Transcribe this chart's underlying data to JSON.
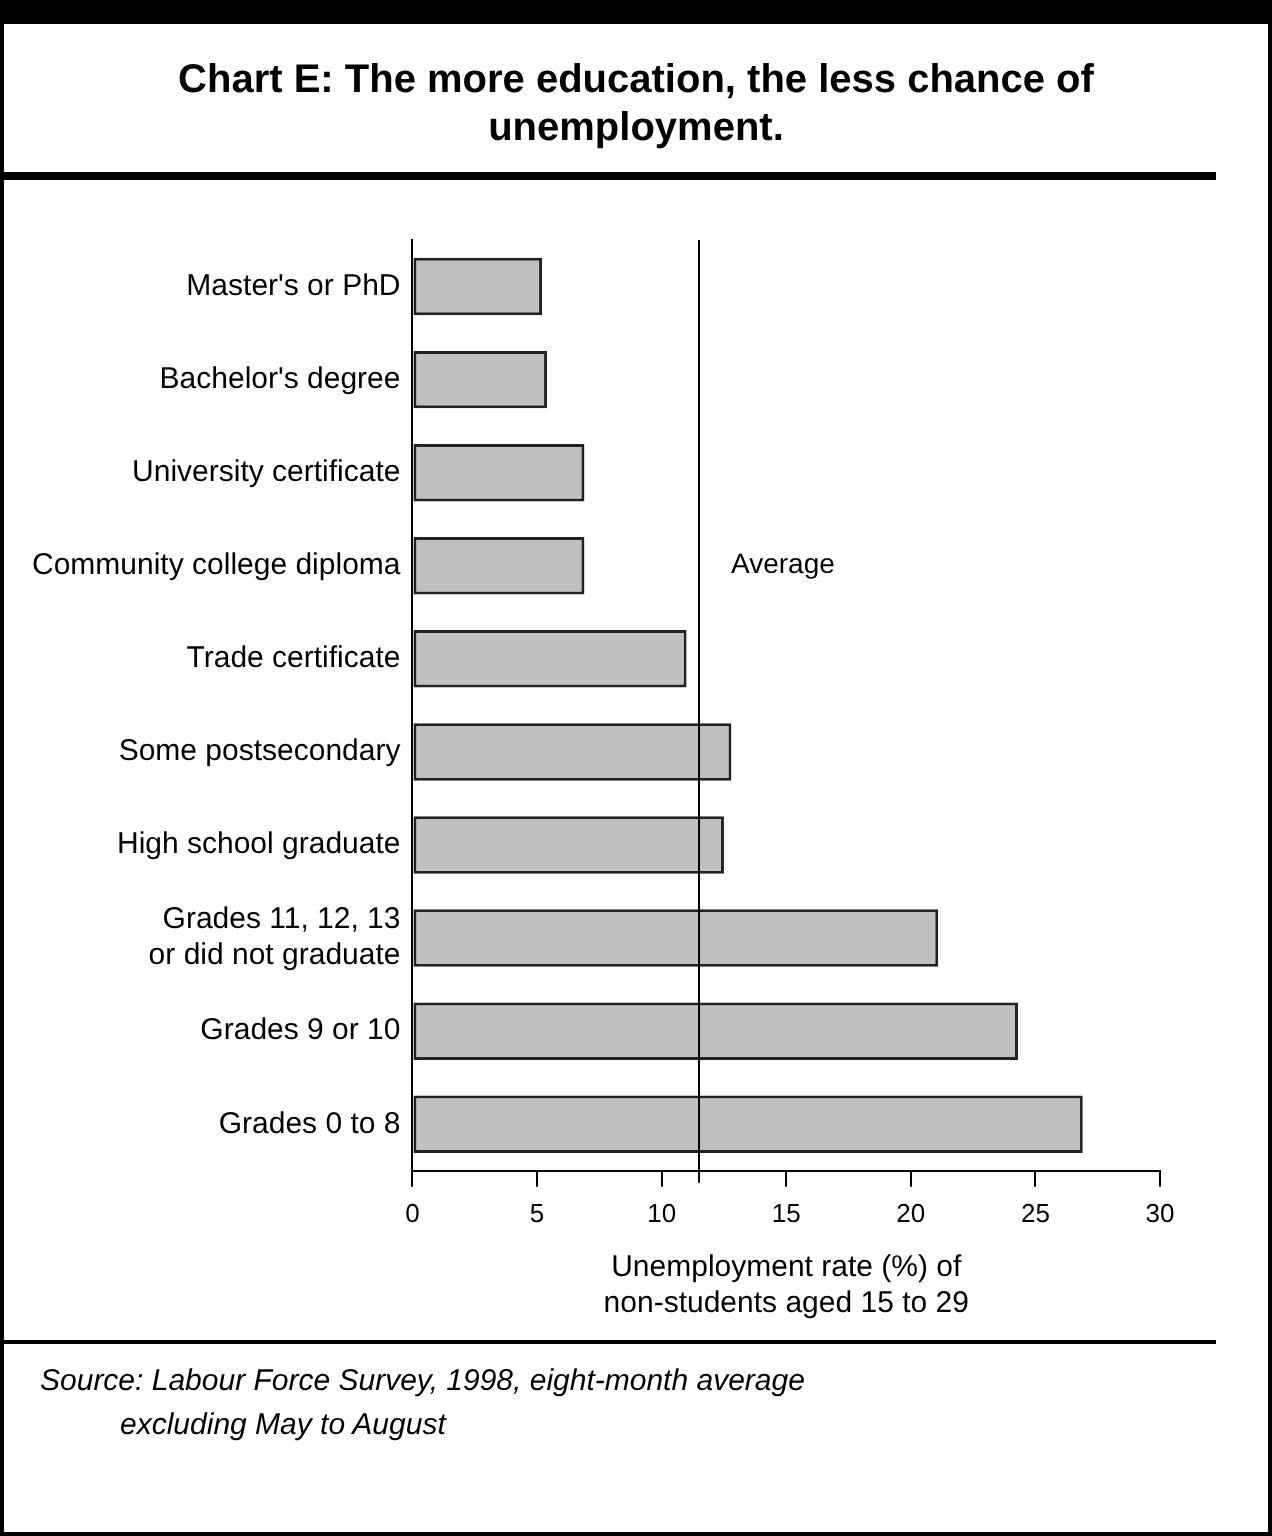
{
  "chart_data": {
    "type": "bar",
    "orientation": "horizontal",
    "title": "Chart E: The more education, the less chance of unemployment.",
    "xlabel": "Unemployment rate (%) of\nnon-students aged 15 to 29",
    "categories": [
      "Master's or PhD",
      "Bachelor's degree",
      "University certificate",
      "Community college diploma",
      "Trade certificate",
      "Some postsecondary",
      "High school graduate",
      "Grades 11, 12, 13\nor did not graduate",
      "Grades 9 or 10",
      "Grades 0 to 8"
    ],
    "values": [
      5.2,
      5.4,
      6.9,
      6.9,
      11.0,
      12.8,
      12.5,
      21.1,
      24.3,
      26.9
    ],
    "color": "#c0c0c0",
    "xlim": [
      0,
      30
    ],
    "xticks": [
      0,
      5,
      10,
      15,
      20,
      25,
      30
    ],
    "grid": false,
    "legend": false,
    "ref_lines": [
      {
        "axis": "x",
        "value": 11.5,
        "label": "Average",
        "color": "#000000"
      }
    ],
    "annotations": [
      "Source: Labour Force Survey, 1998, eight-month average\nexcluding May to August"
    ]
  }
}
